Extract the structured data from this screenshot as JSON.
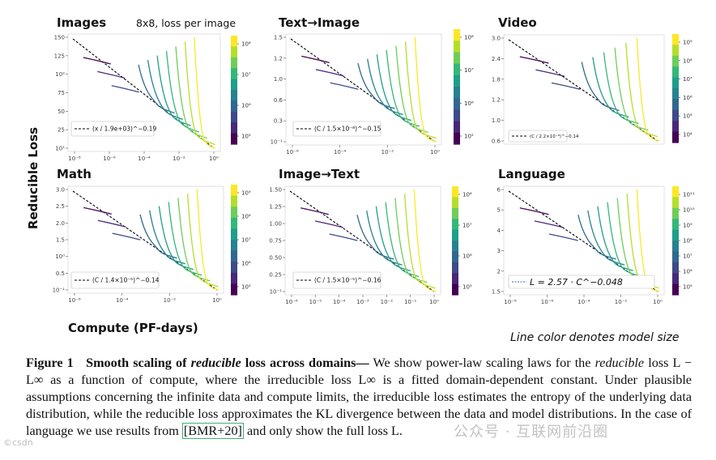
{
  "figure": {
    "y_label": "Reducible Loss",
    "x_label": "Compute (PF-days)",
    "color_note": "Line color denotes model size",
    "caption": {
      "figure_number": "Figure 1",
      "title_pre": "Smooth scaling of ",
      "title_italic": "reducible",
      "title_post": " loss across domains—",
      "body_1": " We show power-law scaling laws for the ",
      "body_italic_reducible": "reducible",
      "body_2": " loss L − L∞ as a function of compute, where the irreducible loss L∞ is a fitted domain-dependent constant. Under plausible assumptions concerning the infinite data and compute limits, the irreducible loss estimates the entropy of the underlying data distribution, while the reducible loss approximates the KL divergence between the data and model distributions. In the case of language we use results from ",
      "ref": "[BMR+20]",
      "body_3": " and only show the full loss L."
    },
    "watermark": "公众号 · 互联网前沿圈",
    "watermark_small": "©csdn"
  },
  "chart_data": [
    {
      "type": "line",
      "title": "Images",
      "subtitle": "8x8, loss per image",
      "x_ticks": [
        "10⁻⁸",
        "10⁻⁶",
        "10⁻⁴",
        "10⁻²",
        "10⁰"
      ],
      "y_ticks": [
        "150",
        "125",
        "10²",
        "75",
        "50",
        "25",
        "10¹"
      ],
      "colorbar_ticks": [
        "10⁵",
        "10⁶",
        "10⁷",
        "10⁸"
      ],
      "legend": "(x / 1.9e+03)^−0.19",
      "legend_exponent": "−0.19",
      "n_series": 10
    },
    {
      "type": "line",
      "title": "Text→Image",
      "x_ticks": [
        "10⁻⁶",
        "10⁻⁴",
        "10⁻²",
        "10⁰"
      ],
      "y_ticks": [
        "1.5",
        "1.2",
        "1.0",
        "0.6",
        "0.3",
        "10⁻¹"
      ],
      "colorbar_ticks": [
        "10⁵",
        "10⁶",
        "10⁷",
        "10⁸"
      ],
      "legend": "(C / 1.5×10⁻⁸)^−0.15",
      "legend_exponent": "−0.15",
      "n_series": 10
    },
    {
      "type": "line",
      "title": "Video",
      "x_ticks": [],
      "y_ticks": [
        "3.0",
        "2.4",
        "1.8",
        "1.2",
        "1.0",
        "0.6"
      ],
      "colorbar_ticks": [
        "10⁴",
        "10⁵",
        "10⁶",
        "10⁷",
        "10⁸",
        "10⁹"
      ],
      "legend": "(C / 2.2×10⁻⁹)^−0.14",
      "legend_exponent": "−0.14",
      "n_series": 9
    },
    {
      "type": "line",
      "title": "Math",
      "x_ticks": [
        "10⁻⁶",
        "10⁻⁴",
        "10⁻²",
        "10⁰"
      ],
      "y_ticks": [
        "3.0",
        "2.5",
        "2.0",
        "1.5",
        "10⁰",
        "0.5",
        "10⁻¹"
      ],
      "colorbar_ticks": [
        "10⁵",
        "10⁶",
        "10⁷",
        "10⁸",
        "10⁹"
      ],
      "legend": "(C / 1.4×10⁻⁵)^−0.14",
      "legend_exponent": "−0.14",
      "n_series": 10
    },
    {
      "type": "line",
      "title": "Image→Text",
      "x_ticks": [
        "10⁻⁶",
        "10⁻⁵",
        "10⁻⁴",
        "10⁻³",
        "10⁻²",
        "10⁻¹",
        "10⁰"
      ],
      "y_ticks": [
        "1.50",
        "1.25",
        "1.00",
        "0.75",
        "0.50",
        "0.25",
        "10⁻¹"
      ],
      "colorbar_ticks": [
        "10⁵",
        "10⁶",
        "10⁷",
        "10⁸"
      ],
      "legend": "(C / 1.5×10⁻⁵)^−0.16",
      "legend_exponent": "−0.16",
      "n_series": 10
    },
    {
      "type": "line",
      "title": "Language",
      "x_ticks": [
        "10⁻⁸",
        "10⁻⁶",
        "10⁻⁴",
        "10⁻²",
        "10⁰"
      ],
      "y_ticks": [
        "6",
        "5",
        "4",
        "3",
        "2",
        "1.5"
      ],
      "colorbar_ticks": [
        "10⁵",
        "10⁶",
        "10⁷",
        "10⁸",
        "10⁹",
        "10¹⁰",
        "10¹¹"
      ],
      "legend": "L = 2.57 · C^−0.048",
      "legend_exponent": "−0.048",
      "n_series": 10
    }
  ]
}
